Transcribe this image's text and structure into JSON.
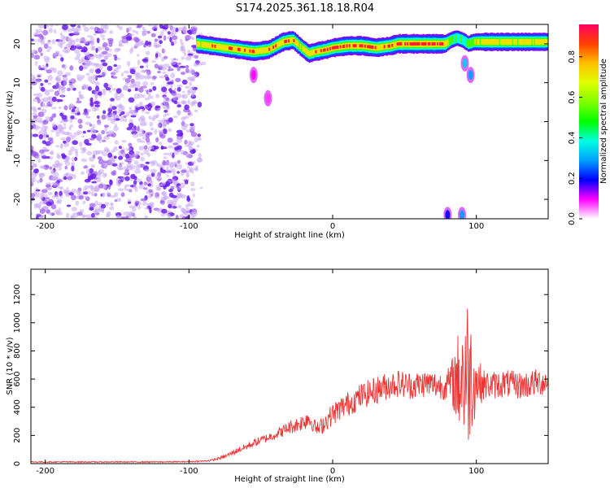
{
  "title": "S174.2025.361.18.18.R04",
  "chart_data": [
    {
      "type": "heatmap",
      "title": "S174.2025.361.18.18.R04",
      "xlabel": "Height of straight line (km)",
      "ylabel": "Frequency (Hz)",
      "xlim": [
        -210,
        150
      ],
      "ylim": [
        -25,
        25
      ],
      "xticks": [
        -200,
        -100,
        0,
        100
      ],
      "yticks": [
        20,
        10,
        0,
        -10,
        -20
      ],
      "noise_region_x": [
        -210,
        -90
      ],
      "ridge": {
        "x": [
          -95,
          -85,
          -75,
          -65,
          -55,
          -45,
          -35,
          -28,
          -22,
          -17,
          -12,
          -5,
          0,
          10,
          20,
          30,
          40,
          45,
          50,
          60,
          70,
          78,
          82,
          86,
          90,
          94,
          98,
          105,
          115,
          125,
          135,
          150
        ],
        "freq": [
          20,
          19.5,
          19,
          18.5,
          18,
          18.5,
          20.5,
          21,
          19,
          17.5,
          18,
          18.5,
          19,
          19.5,
          19.5,
          19,
          19.5,
          20,
          20,
          20,
          20,
          20,
          21,
          21.5,
          21,
          20,
          20.5,
          20.5,
          20.5,
          20.5,
          20.5,
          20.5
        ],
        "amp": [
          0.8,
          0.85,
          0.85,
          0.9,
          0.9,
          0.85,
          0.9,
          0.85,
          0.8,
          0.85,
          0.85,
          0.9,
          0.9,
          0.95,
          0.95,
          0.9,
          0.9,
          0.95,
          0.95,
          1.0,
          1.0,
          0.9,
          0.6,
          0.5,
          0.5,
          0.6,
          0.7,
          0.8,
          0.8,
          0.8,
          0.8,
          0.8
        ]
      },
      "blobs": [
        {
          "x": 92,
          "freq": 15,
          "amp": 0.35
        },
        {
          "x": 96,
          "freq": 12,
          "amp": 0.3
        },
        {
          "x": 90,
          "freq": -24,
          "amp": 0.3
        },
        {
          "x": 80,
          "freq": -24,
          "amp": 0.2
        },
        {
          "x": -55,
          "freq": 12,
          "amp": 0.1
        },
        {
          "x": -45,
          "freq": 6,
          "amp": 0.08
        }
      ]
    },
    {
      "type": "colorbar",
      "label": "Normalized spectral amplitude",
      "ticks": [
        0.0,
        0.2,
        0.4,
        0.6,
        0.8
      ],
      "range": [
        0,
        0.96
      ]
    },
    {
      "type": "line",
      "xlabel": "Height of straight line (km)",
      "ylabel": "SNR (10 * v/v)",
      "xlim": [
        -210,
        150
      ],
      "ylim": [
        0,
        1380
      ],
      "xticks": [
        -200,
        -100,
        0,
        100
      ],
      "yticks": [
        0,
        200,
        400,
        600,
        800,
        1000,
        1200
      ],
      "color": "#ee3333",
      "series": [
        {
          "name": "SNR",
          "x": [
            -210,
            -180,
            -150,
            -120,
            -100,
            -90,
            -85,
            -80,
            -75,
            -70,
            -65,
            -60,
            -55,
            -50,
            -45,
            -40,
            -35,
            -30,
            -25,
            -20,
            -17,
            -15,
            -12,
            -10,
            -5,
            0,
            5,
            10,
            15,
            20,
            25,
            30,
            35,
            40,
            45,
            50,
            55,
            60,
            65,
            70,
            75,
            80,
            84,
            88,
            91,
            94,
            97,
            100,
            105,
            110,
            115,
            120,
            125,
            130,
            135,
            140,
            145,
            150
          ],
          "y": [
            12,
            12,
            12,
            12,
            14,
            18,
            22,
            35,
            50,
            75,
            100,
            120,
            145,
            165,
            185,
            205,
            230,
            260,
            275,
            300,
            330,
            300,
            260,
            240,
            300,
            350,
            390,
            420,
            450,
            480,
            500,
            520,
            540,
            560,
            570,
            560,
            555,
            560,
            570,
            560,
            555,
            560,
            580,
            600,
            640,
            650,
            620,
            580,
            560,
            555,
            560,
            570,
            560,
            555,
            560,
            570,
            580,
            580
          ],
          "noise": [
            4,
            4,
            4,
            4,
            4,
            5,
            6,
            10,
            14,
            18,
            22,
            25,
            28,
            30,
            32,
            35,
            40,
            50,
            55,
            60,
            90,
            60,
            50,
            55,
            70,
            80,
            85,
            90,
            90,
            95,
            95,
            100,
            100,
            100,
            100,
            100,
            100,
            100,
            100,
            100,
            100,
            110,
            200,
            380,
            560,
            560,
            400,
            200,
            110,
            100,
            100,
            100,
            100,
            100,
            100,
            100,
            100,
            100
          ]
        }
      ]
    }
  ]
}
